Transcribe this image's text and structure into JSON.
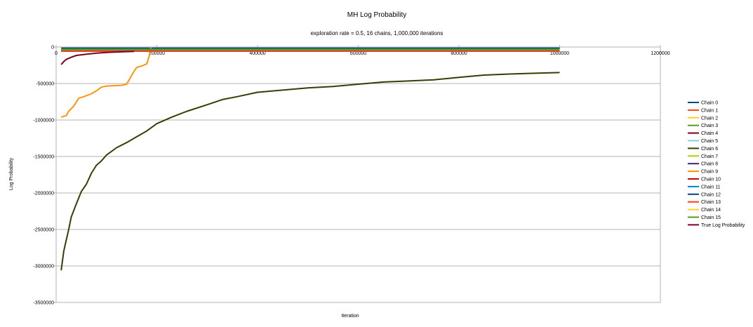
{
  "chart_data": {
    "type": "line",
    "title": "MH Log Probability",
    "subtitle": "exploration rate = 0.5, 16 chains, 1,000,000 iterations",
    "xlabel": "Iteration",
    "ylabel": "Log Probability",
    "xlim": [
      0,
      1200000
    ],
    "ylim": [
      -3500000,
      0
    ],
    "xticks": [
      0,
      200000,
      400000,
      600000,
      800000,
      1000000,
      1200000
    ],
    "yticks": [
      0,
      -500000,
      -1000000,
      -1500000,
      -2000000,
      -2500000,
      -3000000,
      -3500000
    ],
    "grid": "horizontal",
    "legend_position": "right",
    "series": [
      {
        "name": "Chain 0",
        "color": "#004586",
        "x": [
          10000,
          1000000
        ],
        "y": [
          -15000,
          -15000
        ]
      },
      {
        "name": "Chain 1",
        "color": "#ff420e",
        "x": [
          10000,
          1000000
        ],
        "y": [
          -55000,
          -55000
        ]
      },
      {
        "name": "Chain 2",
        "color": "#ffd320",
        "x": [
          10000,
          1000000
        ],
        "y": [
          -52000,
          -52000
        ]
      },
      {
        "name": "Chain 3",
        "color": "#579d1c",
        "x": [
          10000,
          1000000
        ],
        "y": [
          -50000,
          -50000
        ]
      },
      {
        "name": "Chain 4",
        "color": "#7e0021",
        "x": [
          10000,
          1000000
        ],
        "y": [
          -48000,
          -48000
        ]
      },
      {
        "name": "Chain 5",
        "color": "#83caff",
        "x": [
          10000,
          1000000
        ],
        "y": [
          -46000,
          -46000
        ]
      },
      {
        "name": "Chain 6",
        "color": "#314004",
        "x": [
          10000,
          15000,
          20000,
          25000,
          30000,
          40000,
          50000,
          60000,
          70000,
          80000,
          90000,
          100000,
          120000,
          140000,
          160000,
          180000,
          200000,
          230000,
          260000,
          300000,
          330000,
          360000,
          400000,
          450000,
          500000,
          550000,
          600000,
          650000,
          700000,
          750000,
          800000,
          850000,
          900000,
          950000,
          1000000
        ],
        "y": [
          -3060000,
          -2800000,
          -2650000,
          -2500000,
          -2330000,
          -2150000,
          -1980000,
          -1880000,
          -1730000,
          -1620000,
          -1560000,
          -1480000,
          -1380000,
          -1310000,
          -1230000,
          -1150000,
          -1050000,
          -960000,
          -880000,
          -790000,
          -720000,
          -680000,
          -620000,
          -590000,
          -560000,
          -540000,
          -510000,
          -480000,
          -465000,
          -450000,
          -415000,
          -385000,
          -370000,
          -360000,
          -350000
        ]
      },
      {
        "name": "Chain 7",
        "color": "#aecf00",
        "x": [
          10000,
          1000000
        ],
        "y": [
          -44000,
          -44000
        ]
      },
      {
        "name": "Chain 8",
        "color": "#4b1f6f",
        "x": [
          10000,
          1000000
        ],
        "y": [
          -42000,
          -42000
        ]
      },
      {
        "name": "Chain 9",
        "color": "#ff950e",
        "x": [
          10000,
          20000,
          25000,
          35000,
          45000,
          50000,
          55000,
          70000,
          80000,
          90000,
          100000,
          130000,
          140000,
          145000,
          155000,
          160000,
          170000,
          180000,
          185000,
          188000
        ],
        "y": [
          -960000,
          -940000,
          -880000,
          -810000,
          -700000,
          -690000,
          -680000,
          -640000,
          -600000,
          -550000,
          -535000,
          -525000,
          -510000,
          -450000,
          -330000,
          -280000,
          -260000,
          -230000,
          -120000,
          -5000
        ]
      },
      {
        "name": "Chain 10",
        "color": "#c5000b",
        "x": [
          10000,
          1000000
        ],
        "y": [
          -40000,
          -40000
        ]
      },
      {
        "name": "Chain 11",
        "color": "#0084d1",
        "x": [
          10000,
          1000000
        ],
        "y": [
          -38000,
          -38000
        ]
      },
      {
        "name": "Chain 12",
        "color": "#004586",
        "x": [
          10000,
          1000000
        ],
        "y": [
          -36000,
          -36000
        ]
      },
      {
        "name": "Chain 13",
        "color": "#ff420e",
        "x": [
          10000,
          1000000
        ],
        "y": [
          -58000,
          -58000
        ]
      },
      {
        "name": "Chain 14",
        "color": "#ffd320",
        "x": [
          10000,
          1000000
        ],
        "y": [
          -34000,
          -34000
        ]
      },
      {
        "name": "Chain 15",
        "color": "#579d1c",
        "x": [
          10000,
          1000000
        ],
        "y": [
          -32000,
          -32000
        ]
      },
      {
        "name": "True Log Probability",
        "color": "#7e0021",
        "x": [
          10000,
          15000,
          20000,
          30000,
          40000,
          60000,
          80000,
          100000,
          120000,
          140000,
          155000
        ],
        "y": [
          -240000,
          -200000,
          -170000,
          -140000,
          -115000,
          -98000,
          -85000,
          -75000,
          -68000,
          -63000,
          -60000
        ]
      }
    ]
  }
}
